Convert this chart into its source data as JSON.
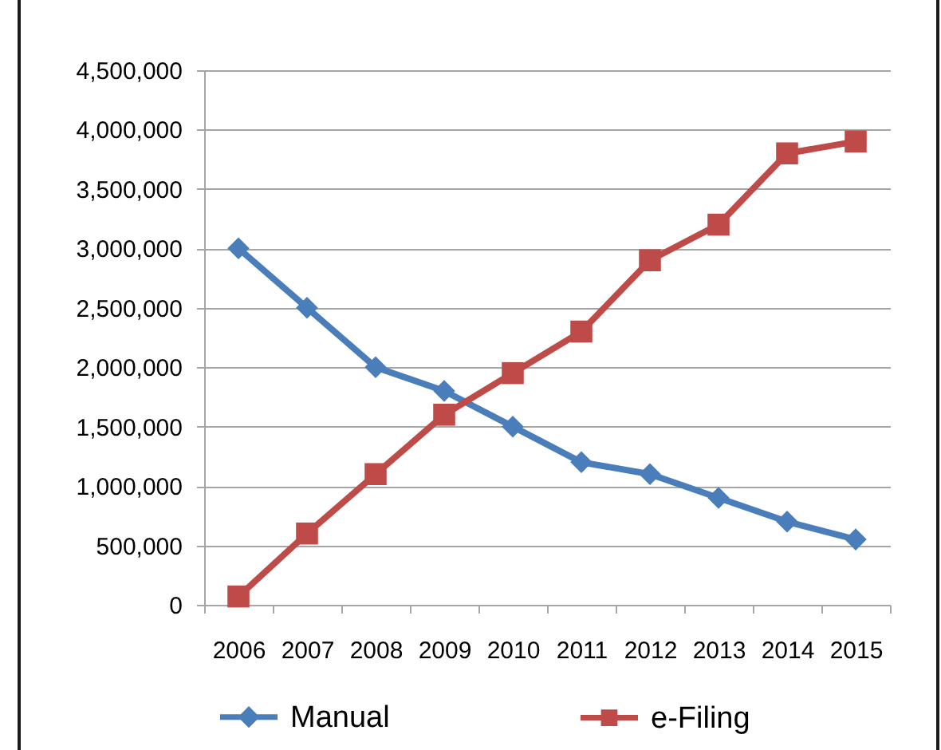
{
  "chart_data": {
    "type": "line",
    "categories": [
      "2006",
      "2007",
      "2008",
      "2009",
      "2010",
      "2011",
      "2012",
      "2013",
      "2014",
      "2015"
    ],
    "series": [
      {
        "name": "Manual",
        "color": "#4a7ebb",
        "marker": "diamond",
        "values": [
          3000000,
          2500000,
          2000000,
          1800000,
          1500000,
          1200000,
          1100000,
          900000,
          700000,
          550000
        ]
      },
      {
        "name": "e-Filing",
        "color": "#be4b48",
        "marker": "square",
        "values": [
          70000,
          600000,
          1100000,
          1600000,
          1950000,
          2300000,
          2900000,
          3200000,
          3800000,
          3900000
        ]
      }
    ],
    "ylim": [
      0,
      4500000
    ],
    "yticks": [
      0,
      {
        "value": 500000,
        "label": "500,000"
      },
      {
        "value": 1000000,
        "label": "1,000,000"
      },
      {
        "value": 1500000,
        "label": "1,500,000"
      },
      {
        "value": 2000000,
        "label": "2,000,000"
      },
      {
        "value": 2500000,
        "label": "2,500,000"
      },
      {
        "value": 3000000,
        "label": "3,000,000"
      },
      {
        "value": 3500000,
        "label": "3,500,000"
      },
      {
        "value": 4000000,
        "label": "4,000,000"
      },
      {
        "value": 4500000,
        "label": "4,500,000"
      }
    ],
    "grid": "y",
    "legend": "bottom"
  }
}
